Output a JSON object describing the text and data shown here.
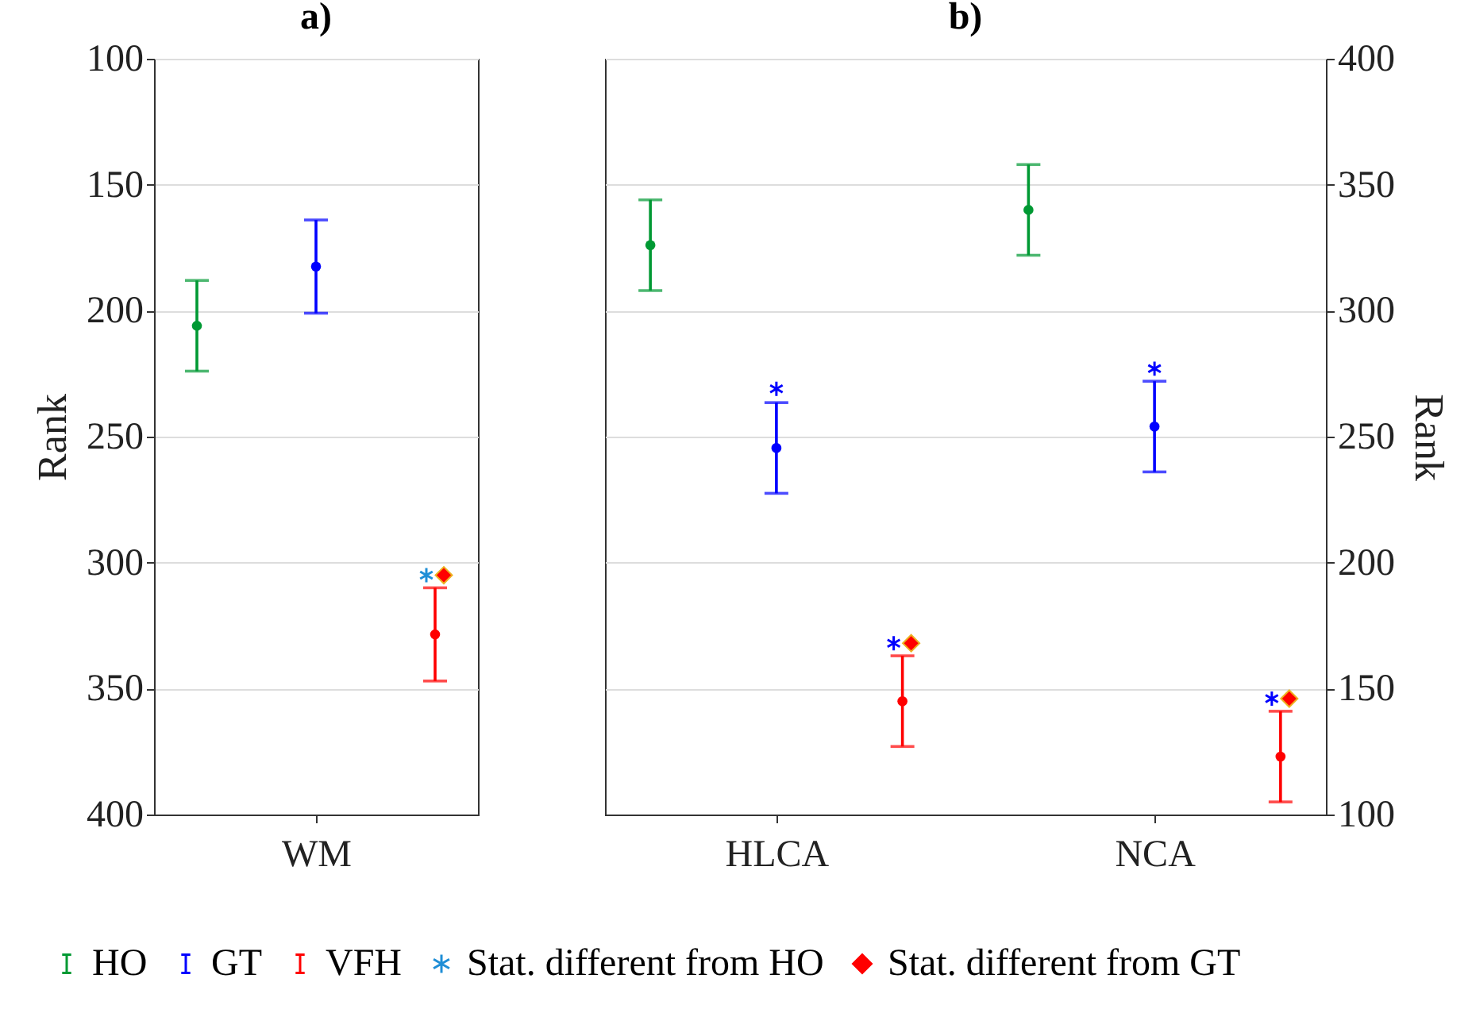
{
  "chart_data": [
    {
      "type": "scatter",
      "title": "a)",
      "ylabel": "Rank",
      "categories": [
        null,
        "WM",
        null
      ],
      "ylim": [
        400,
        100
      ],
      "yticks": [
        100,
        150,
        200,
        250,
        300,
        350,
        400
      ],
      "grid": "y",
      "legend": "bottom",
      "series": [
        {
          "name": "HO",
          "color": "#009933",
          "marker": "circle",
          "values": [
            206,
            null,
            null
          ],
          "errors": [
            18,
            null,
            null
          ]
        },
        {
          "name": "GT",
          "color": "#0000ff",
          "marker": "circle",
          "values": [
            null,
            182.5,
            null
          ],
          "errors": [
            null,
            18.5,
            null
          ]
        },
        {
          "name": "VFH",
          "color": "#ff0000",
          "marker": "circle",
          "values": [
            null,
            null,
            328.5
          ],
          "errors": [
            null,
            null,
            18.5
          ]
        },
        {
          "name": "Stat. different from HO",
          "color": "#1f8ed6",
          "marker": "cross",
          "values": [
            null,
            null,
            305
          ]
        },
        {
          "name": "Stat. different from GT",
          "color": "#ff0000",
          "marker": "diamond",
          "values": [
            null,
            null,
            305
          ]
        }
      ]
    },
    {
      "type": "scatter",
      "title": "b)",
      "y2label": "Rank",
      "categories": [
        null,
        "HLCA",
        null,
        null,
        "NCA",
        null
      ],
      "y2lim": [
        100,
        400
      ],
      "y2ticks": [
        100,
        150,
        200,
        250,
        300,
        350,
        400
      ],
      "grid": "y",
      "series": [
        {
          "color": "#009933",
          "marker": "circle",
          "axis": "y2",
          "values": [
            326,
            null,
            null,
            340,
            null,
            null
          ],
          "errors": [
            18,
            null,
            null,
            18,
            null,
            null
          ]
        },
        {
          "color": "#0000ff",
          "marker": "circle",
          "axis": "y2",
          "values": [
            null,
            245.5,
            null,
            null,
            254,
            null
          ],
          "errors": [
            null,
            18,
            null,
            null,
            18,
            null
          ]
        },
        {
          "color": "#ff0000",
          "marker": "circle",
          "axis": "y2",
          "values": [
            null,
            null,
            145,
            null,
            null,
            123
          ],
          "errors": [
            null,
            null,
            18,
            null,
            null,
            18
          ]
        },
        {
          "color": "#0000ff",
          "marker": "cross",
          "axis": "y2",
          "values": [
            null,
            269,
            168,
            null,
            277,
            146
          ]
        },
        {
          "color": "#ff0000",
          "marker": "diamond",
          "axis": "y2",
          "values": [
            null,
            null,
            168,
            null,
            null,
            146
          ]
        }
      ]
    }
  ]
}
